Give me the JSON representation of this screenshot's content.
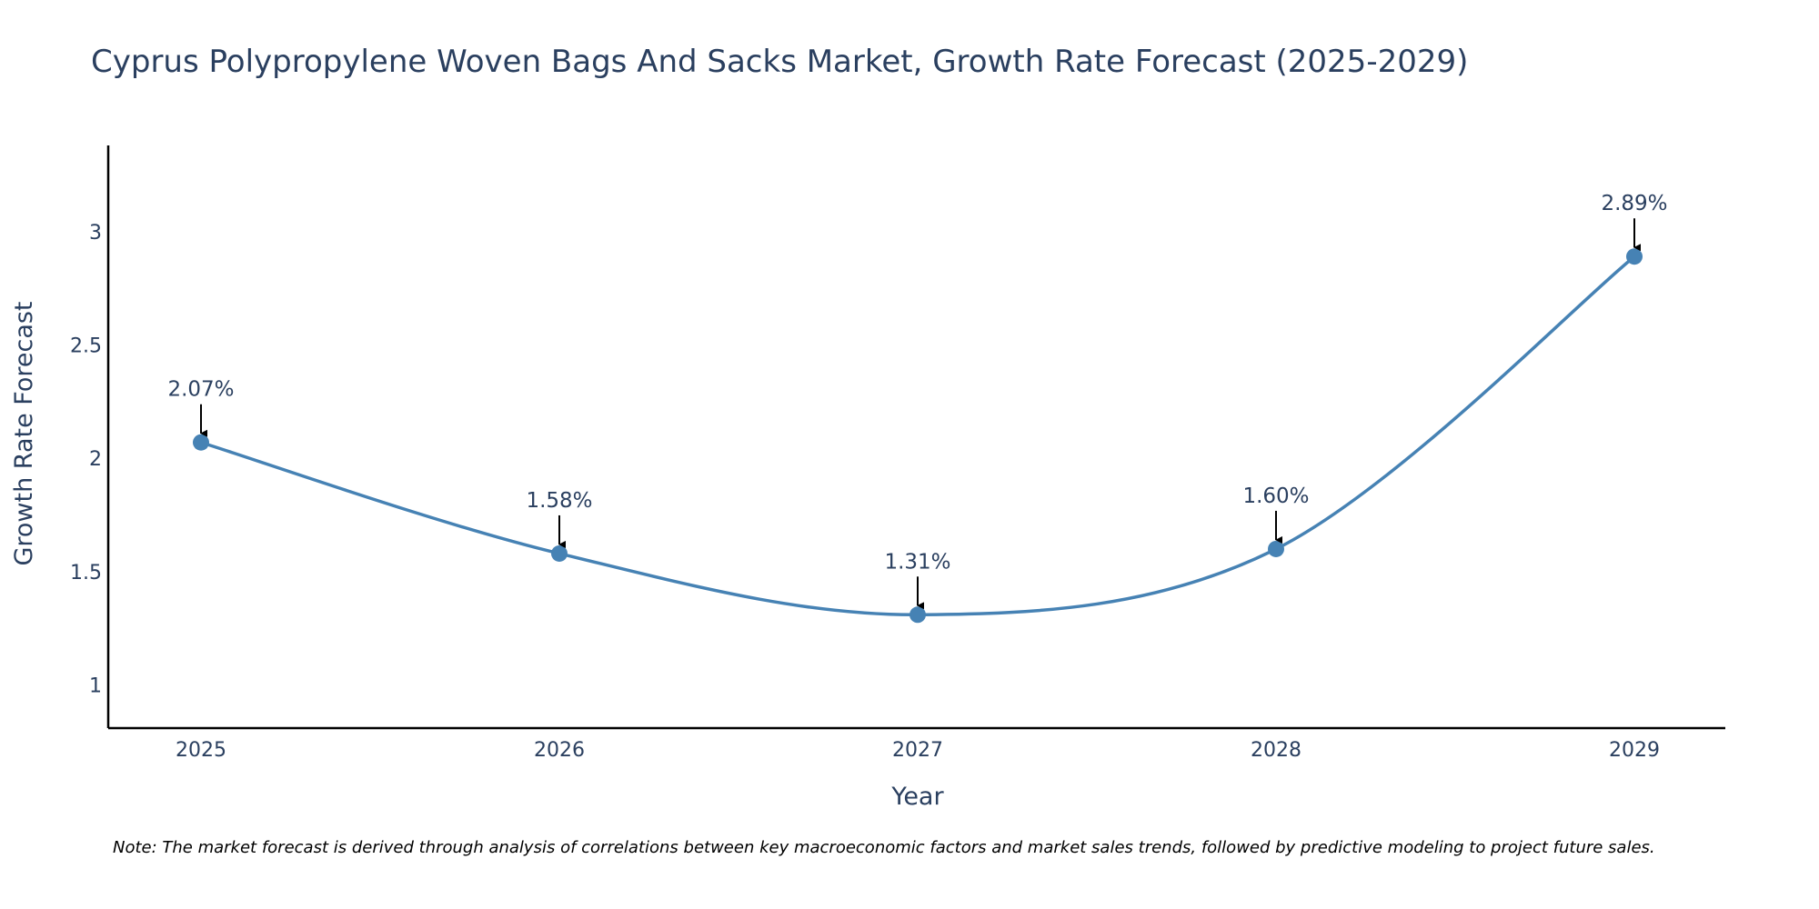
{
  "chart_data": {
    "type": "line",
    "title": "Cyprus Polypropylene Woven Bags And Sacks Market, Growth Rate Forecast (2025-2029)",
    "xlabel": "Year",
    "ylabel": "Growth Rate Forecast",
    "categories": [
      "2025",
      "2026",
      "2027",
      "2028",
      "2029"
    ],
    "series": [
      {
        "name": "Growth Rate Forecast",
        "values": [
          2.07,
          1.58,
          1.31,
          1.6,
          2.89
        ],
        "labels": [
          "2.07%",
          "1.58%",
          "1.31%",
          "1.60%",
          "2.89%"
        ]
      }
    ],
    "ylim": [
      0.81,
      3.38
    ],
    "yticks": [
      1,
      1.5,
      2,
      2.5,
      3
    ],
    "ytick_labels": [
      "1",
      "1.5",
      "2",
      "2.5",
      "3"
    ],
    "grid": false,
    "line_shape": "spline",
    "line_color": "#4682b4",
    "note": "Note: The market forecast is derived through analysis of correlations between key macroeconomic factors and market sales trends, followed by predictive modeling to project future sales."
  }
}
